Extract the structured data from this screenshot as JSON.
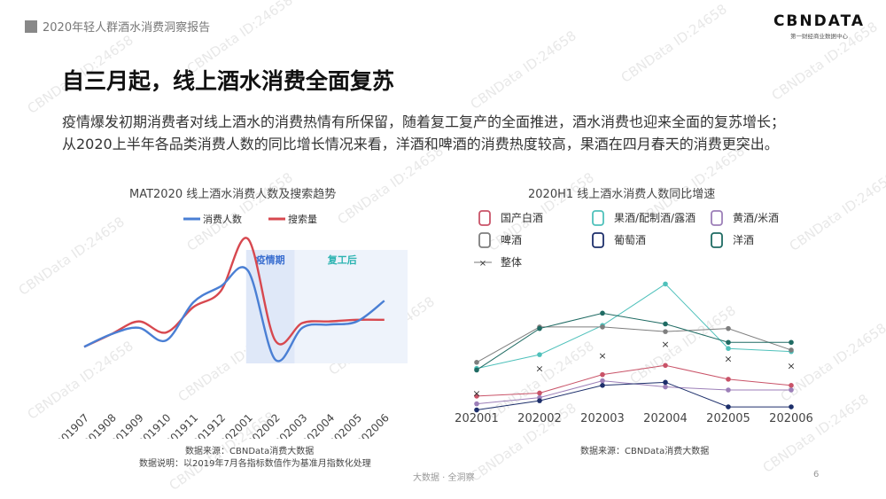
{
  "header": {
    "report_title": "2020年轻人群酒水消费洞察报告"
  },
  "logo": {
    "name": "CBNDATA",
    "tagline": "第一财经商业数据中心"
  },
  "slide": {
    "title": "自三月起，线上酒水消费全面复苏",
    "description_line1": "疫情爆发初期消费者对线上酒水的消费热情有所保留，随着复工复产的全面推进，酒水消费也迎来全面的复苏增长；",
    "description_line2": "从2020上半年各品类消费人数的同比增长情况来看，洋酒和啤酒的消费热度较高，果酒在四月春天的消费更突出。"
  },
  "left_chart": {
    "source": "数据来源：CBNData消费大数据",
    "note": "数据说明：以2019年7月各指标数值作为基准月指数化处理"
  },
  "right_chart": {
    "source": "数据来源：CBNData消费大数据"
  },
  "footer": {
    "slogan": "大数据 · 全洞察",
    "page": "6"
  },
  "watermark": {
    "text": "CBNData ID:24658"
  },
  "colors": {
    "blue": "#4a7fd4",
    "red": "#d7484f",
    "shade": "#e6eefa"
  },
  "chart_data": [
    {
      "type": "line",
      "title": "MAT2020 线上酒水消费人数及搜索趋势",
      "categories": [
        "201907",
        "201908",
        "201909",
        "201910",
        "201911",
        "201912",
        "202001",
        "202002",
        "202003",
        "202004",
        "202005",
        "202006"
      ],
      "series": [
        {
          "name": "消费人数",
          "color": "#4a7fd4",
          "values": [
            100,
            108,
            112,
            104,
            128,
            138,
            148,
            92,
            112,
            114,
            116,
            129
          ]
        },
        {
          "name": "搜索量",
          "color": "#d7484f",
          "values": [
            100,
            108,
            116,
            109,
            125,
            135,
            168,
            104,
            115,
            116,
            117,
            117
          ]
        }
      ],
      "annotations": [
        {
          "label": "疫情期",
          "from": "202001",
          "to": "202002",
          "color": "#3b6fd0"
        },
        {
          "label": "复工后",
          "from": "202002",
          "to": "202006",
          "color": "#2bb3b1"
        }
      ],
      "ylim": [
        60,
        190
      ]
    },
    {
      "type": "line",
      "title": "2020H1 线上酒水消费人数同比增速",
      "categories": [
        "202001",
        "202002",
        "202003",
        "202004",
        "202005",
        "202006"
      ],
      "series": [
        {
          "name": "国产白酒",
          "icon": "baijiu-bottle-icon",
          "color": "#c95368",
          "values": [
            12,
            16,
            40,
            52,
            34,
            26
          ]
        },
        {
          "name": "果酒/配制酒/露酒",
          "icon": "fruit-wine-icon",
          "color": "#4fc1bb",
          "values": [
            48,
            66,
            104,
            158,
            74,
            70
          ]
        },
        {
          "name": "黄酒/米酒",
          "icon": "rice-wine-bowl-icon",
          "color": "#9c7fb8",
          "values": [
            2,
            10,
            32,
            24,
            20,
            20
          ]
        },
        {
          "name": "啤酒",
          "icon": "beer-mug-icon",
          "color": "#7e7e7e",
          "values": [
            56,
            102,
            102,
            96,
            100,
            72
          ]
        },
        {
          "name": "葡萄酒",
          "icon": "wine-glass-icon",
          "color": "#1d2f6b",
          "values": [
            -6,
            6,
            26,
            30,
            -2,
            -2
          ]
        },
        {
          "name": "洋酒",
          "icon": "whisky-bottle-icon",
          "color": "#1f6b63",
          "values": [
            46,
            100,
            120,
            106,
            82,
            82
          ]
        },
        {
          "name": "整体",
          "icon": "dash-cross-icon",
          "color": "#333333",
          "marker": "cross",
          "values": [
            16,
            48,
            65,
            80,
            61,
            52
          ]
        }
      ],
      "ylim": [
        -10,
        170
      ]
    }
  ]
}
